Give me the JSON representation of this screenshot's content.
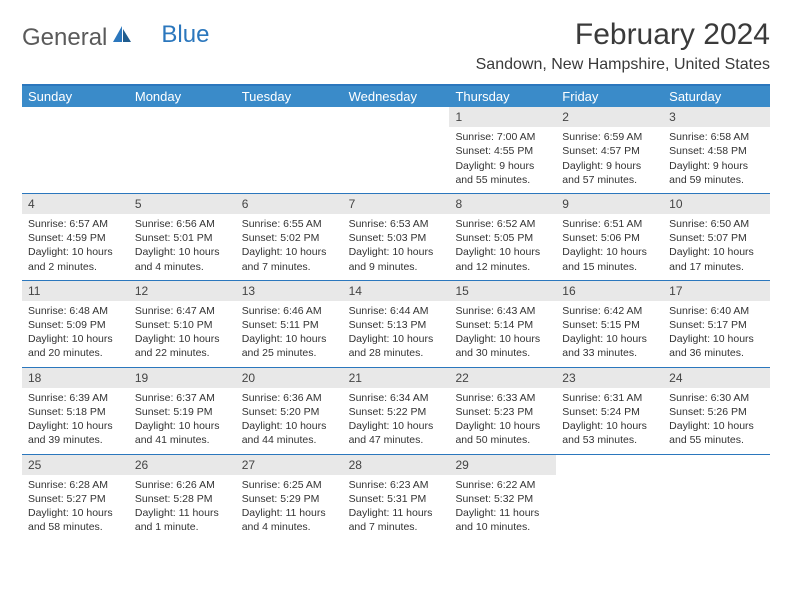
{
  "brand": {
    "part1": "General",
    "part2": "Blue"
  },
  "title": "February 2024",
  "location": "Sandown, New Hampshire, United States",
  "colors": {
    "header_bg": "#3a8bc9",
    "border": "#2b77bd",
    "daynum_bg": "#e8e8e8",
    "text": "#333333",
    "logo_gray": "#5a5a5a",
    "logo_blue": "#2b77bd"
  },
  "dow": [
    "Sunday",
    "Monday",
    "Tuesday",
    "Wednesday",
    "Thursday",
    "Friday",
    "Saturday"
  ],
  "weeks": [
    [
      null,
      null,
      null,
      null,
      {
        "n": "1",
        "sunrise": "7:00 AM",
        "sunset": "4:55 PM",
        "daylight": "9 hours and 55 minutes."
      },
      {
        "n": "2",
        "sunrise": "6:59 AM",
        "sunset": "4:57 PM",
        "daylight": "9 hours and 57 minutes."
      },
      {
        "n": "3",
        "sunrise": "6:58 AM",
        "sunset": "4:58 PM",
        "daylight": "9 hours and 59 minutes."
      }
    ],
    [
      {
        "n": "4",
        "sunrise": "6:57 AM",
        "sunset": "4:59 PM",
        "daylight": "10 hours and 2 minutes."
      },
      {
        "n": "5",
        "sunrise": "6:56 AM",
        "sunset": "5:01 PM",
        "daylight": "10 hours and 4 minutes."
      },
      {
        "n": "6",
        "sunrise": "6:55 AM",
        "sunset": "5:02 PM",
        "daylight": "10 hours and 7 minutes."
      },
      {
        "n": "7",
        "sunrise": "6:53 AM",
        "sunset": "5:03 PM",
        "daylight": "10 hours and 9 minutes."
      },
      {
        "n": "8",
        "sunrise": "6:52 AM",
        "sunset": "5:05 PM",
        "daylight": "10 hours and 12 minutes."
      },
      {
        "n": "9",
        "sunrise": "6:51 AM",
        "sunset": "5:06 PM",
        "daylight": "10 hours and 15 minutes."
      },
      {
        "n": "10",
        "sunrise": "6:50 AM",
        "sunset": "5:07 PM",
        "daylight": "10 hours and 17 minutes."
      }
    ],
    [
      {
        "n": "11",
        "sunrise": "6:48 AM",
        "sunset": "5:09 PM",
        "daylight": "10 hours and 20 minutes."
      },
      {
        "n": "12",
        "sunrise": "6:47 AM",
        "sunset": "5:10 PM",
        "daylight": "10 hours and 22 minutes."
      },
      {
        "n": "13",
        "sunrise": "6:46 AM",
        "sunset": "5:11 PM",
        "daylight": "10 hours and 25 minutes."
      },
      {
        "n": "14",
        "sunrise": "6:44 AM",
        "sunset": "5:13 PM",
        "daylight": "10 hours and 28 minutes."
      },
      {
        "n": "15",
        "sunrise": "6:43 AM",
        "sunset": "5:14 PM",
        "daylight": "10 hours and 30 minutes."
      },
      {
        "n": "16",
        "sunrise": "6:42 AM",
        "sunset": "5:15 PM",
        "daylight": "10 hours and 33 minutes."
      },
      {
        "n": "17",
        "sunrise": "6:40 AM",
        "sunset": "5:17 PM",
        "daylight": "10 hours and 36 minutes."
      }
    ],
    [
      {
        "n": "18",
        "sunrise": "6:39 AM",
        "sunset": "5:18 PM",
        "daylight": "10 hours and 39 minutes."
      },
      {
        "n": "19",
        "sunrise": "6:37 AM",
        "sunset": "5:19 PM",
        "daylight": "10 hours and 41 minutes."
      },
      {
        "n": "20",
        "sunrise": "6:36 AM",
        "sunset": "5:20 PM",
        "daylight": "10 hours and 44 minutes."
      },
      {
        "n": "21",
        "sunrise": "6:34 AM",
        "sunset": "5:22 PM",
        "daylight": "10 hours and 47 minutes."
      },
      {
        "n": "22",
        "sunrise": "6:33 AM",
        "sunset": "5:23 PM",
        "daylight": "10 hours and 50 minutes."
      },
      {
        "n": "23",
        "sunrise": "6:31 AM",
        "sunset": "5:24 PM",
        "daylight": "10 hours and 53 minutes."
      },
      {
        "n": "24",
        "sunrise": "6:30 AM",
        "sunset": "5:26 PM",
        "daylight": "10 hours and 55 minutes."
      }
    ],
    [
      {
        "n": "25",
        "sunrise": "6:28 AM",
        "sunset": "5:27 PM",
        "daylight": "10 hours and 58 minutes."
      },
      {
        "n": "26",
        "sunrise": "6:26 AM",
        "sunset": "5:28 PM",
        "daylight": "11 hours and 1 minute."
      },
      {
        "n": "27",
        "sunrise": "6:25 AM",
        "sunset": "5:29 PM",
        "daylight": "11 hours and 4 minutes."
      },
      {
        "n": "28",
        "sunrise": "6:23 AM",
        "sunset": "5:31 PM",
        "daylight": "11 hours and 7 minutes."
      },
      {
        "n": "29",
        "sunrise": "6:22 AM",
        "sunset": "5:32 PM",
        "daylight": "11 hours and 10 minutes."
      },
      null,
      null
    ]
  ],
  "labels": {
    "sunrise": "Sunrise:",
    "sunset": "Sunset:",
    "daylight": "Daylight:"
  }
}
